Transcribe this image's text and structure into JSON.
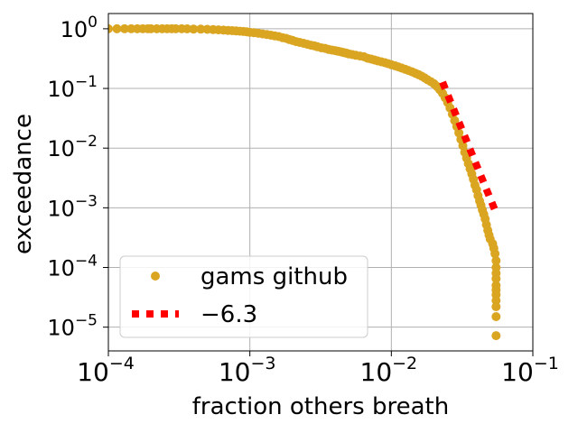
{
  "chart_data": {
    "type": "scatter",
    "xlabel": "fraction others breath",
    "ylabel": "exceedance",
    "xscale": "log",
    "yscale": "log",
    "xlim": [
      0.0001,
      0.1
    ],
    "ylim": [
      4e-06,
      1.8
    ],
    "grid": true,
    "legend_position": "lower-left",
    "x_ticks": [
      {
        "value": 0.0001,
        "base": "10",
        "exp": "−4"
      },
      {
        "value": 0.001,
        "base": "10",
        "exp": "−3"
      },
      {
        "value": 0.01,
        "base": "10",
        "exp": "−2"
      },
      {
        "value": 0.1,
        "base": "10",
        "exp": "−1"
      }
    ],
    "y_ticks": [
      {
        "value": 1,
        "base": "10",
        "exp": "0"
      },
      {
        "value": 0.1,
        "base": "10",
        "exp": "−1"
      },
      {
        "value": 0.01,
        "base": "10",
        "exp": "−2"
      },
      {
        "value": 0.001,
        "base": "10",
        "exp": "−3"
      },
      {
        "value": 0.0001,
        "base": "10",
        "exp": "−4"
      },
      {
        "value": 1e-05,
        "base": "10",
        "exp": "−5"
      }
    ],
    "series": [
      {
        "name": "gams github",
        "kind": "points",
        "color": "#DAA520",
        "points": [
          [
            0.0001,
            1.0
          ],
          [
            0.000115,
            1.0
          ],
          [
            0.00013,
            1.0
          ],
          [
            0.000145,
            1.0
          ],
          [
            0.00016,
            1.0
          ],
          [
            0.000175,
            1.0
          ],
          [
            0.00019,
            1.0
          ],
          [
            0.0002,
            1.0
          ],
          [
            0.00022,
            1.0
          ],
          [
            0.00024,
            1.0
          ],
          [
            0.00026,
            1.0
          ],
          [
            0.00028,
            1.0
          ],
          [
            0.0003,
            1.0
          ],
          [
            0.00033,
            1.0
          ],
          [
            0.00036,
            0.995
          ],
          [
            0.0004,
            0.99
          ],
          [
            0.00045,
            0.985
          ],
          [
            0.0005,
            0.98
          ],
          [
            0.00055,
            0.97
          ],
          [
            0.0006,
            0.96
          ],
          [
            0.00065,
            0.95
          ],
          [
            0.0007,
            0.94
          ],
          [
            0.00075,
            0.93
          ],
          [
            0.0008,
            0.92
          ],
          [
            0.00085,
            0.91
          ],
          [
            0.0009,
            0.9
          ],
          [
            0.00095,
            0.89
          ],
          [
            0.001,
            0.87
          ],
          [
            0.00107,
            0.86
          ],
          [
            0.00115,
            0.84
          ],
          [
            0.00123,
            0.82
          ],
          [
            0.00132,
            0.8
          ],
          [
            0.00141,
            0.78
          ],
          [
            0.0015,
            0.76
          ],
          [
            0.0016,
            0.74
          ],
          [
            0.0017,
            0.71
          ],
          [
            0.0018,
            0.69
          ],
          [
            0.0019,
            0.66
          ],
          [
            0.002,
            0.64
          ],
          [
            0.00212,
            0.61
          ],
          [
            0.00225,
            0.59
          ],
          [
            0.0024,
            0.57
          ],
          [
            0.00255,
            0.55
          ],
          [
            0.0027,
            0.53
          ],
          [
            0.00285,
            0.52
          ],
          [
            0.003,
            0.5
          ],
          [
            0.0032,
            0.48
          ],
          [
            0.0034,
            0.47
          ],
          [
            0.0036,
            0.45
          ],
          [
            0.0038,
            0.44
          ],
          [
            0.004,
            0.43
          ],
          [
            0.0042,
            0.42
          ],
          [
            0.0044,
            0.41
          ],
          [
            0.0046,
            0.4
          ],
          [
            0.0048,
            0.39
          ],
          [
            0.005,
            0.38
          ],
          [
            0.0053,
            0.37
          ],
          [
            0.0056,
            0.36
          ],
          [
            0.006,
            0.35
          ],
          [
            0.0064,
            0.34
          ],
          [
            0.0068,
            0.32
          ],
          [
            0.0072,
            0.31
          ],
          [
            0.0076,
            0.3
          ],
          [
            0.008,
            0.29
          ],
          [
            0.0085,
            0.28
          ],
          [
            0.009,
            0.27
          ],
          [
            0.0095,
            0.26
          ],
          [
            0.01,
            0.25
          ],
          [
            0.0106,
            0.24
          ],
          [
            0.0112,
            0.23
          ],
          [
            0.0118,
            0.22
          ],
          [
            0.0125,
            0.21
          ],
          [
            0.0132,
            0.2
          ],
          [
            0.014,
            0.19
          ],
          [
            0.0148,
            0.18
          ],
          [
            0.0156,
            0.17
          ],
          [
            0.0164,
            0.16
          ],
          [
            0.0172,
            0.15
          ],
          [
            0.018,
            0.14
          ],
          [
            0.019,
            0.13
          ],
          [
            0.02,
            0.12
          ],
          [
            0.021,
            0.108
          ],
          [
            0.022,
            0.095
          ],
          [
            0.023,
            0.083
          ],
          [
            0.024,
            0.07
          ],
          [
            0.025,
            0.058
          ],
          [
            0.026,
            0.047
          ],
          [
            0.027,
            0.037
          ],
          [
            0.028,
            0.029
          ],
          [
            0.029,
            0.023
          ],
          [
            0.03,
            0.018
          ],
          [
            0.031,
            0.014
          ],
          [
            0.032,
            0.011
          ],
          [
            0.033,
            0.0085
          ],
          [
            0.034,
            0.0068
          ],
          [
            0.035,
            0.0055
          ],
          [
            0.036,
            0.0045
          ],
          [
            0.037,
            0.0037
          ],
          [
            0.038,
            0.003
          ],
          [
            0.039,
            0.0024
          ],
          [
            0.04,
            0.002
          ],
          [
            0.041,
            0.0016
          ],
          [
            0.042,
            0.0013
          ],
          [
            0.043,
            0.0011
          ],
          [
            0.044,
            0.00092
          ],
          [
            0.045,
            0.00078
          ],
          [
            0.046,
            0.00065
          ],
          [
            0.047,
            0.00052
          ],
          [
            0.048,
            0.00042
          ],
          [
            0.049,
            0.00035
          ],
          [
            0.05,
            0.0003
          ],
          [
            0.052,
            0.00025
          ],
          [
            0.053,
            0.00021
          ],
          [
            0.054,
            0.00017
          ],
          [
            0.055,
            0.00013
          ],
          [
            0.055,
            0.0001
          ],
          [
            0.055,
            8e-05
          ],
          [
            0.055,
            6.5e-05
          ],
          [
            0.055,
            5e-05
          ],
          [
            0.055,
            4.2e-05
          ],
          [
            0.055,
            3.5e-05
          ],
          [
            0.055,
            2.8e-05
          ],
          [
            0.055,
            2.2e-05
          ],
          [
            0.055,
            1.5e-05
          ],
          [
            0.055,
            7.2e-06
          ]
        ]
      },
      {
        "name": "−6.3",
        "kind": "line",
        "color": "#FF0000",
        "points": [
          [
            0.023,
            0.128
          ],
          [
            0.0555,
            0.00078
          ]
        ]
      }
    ]
  }
}
